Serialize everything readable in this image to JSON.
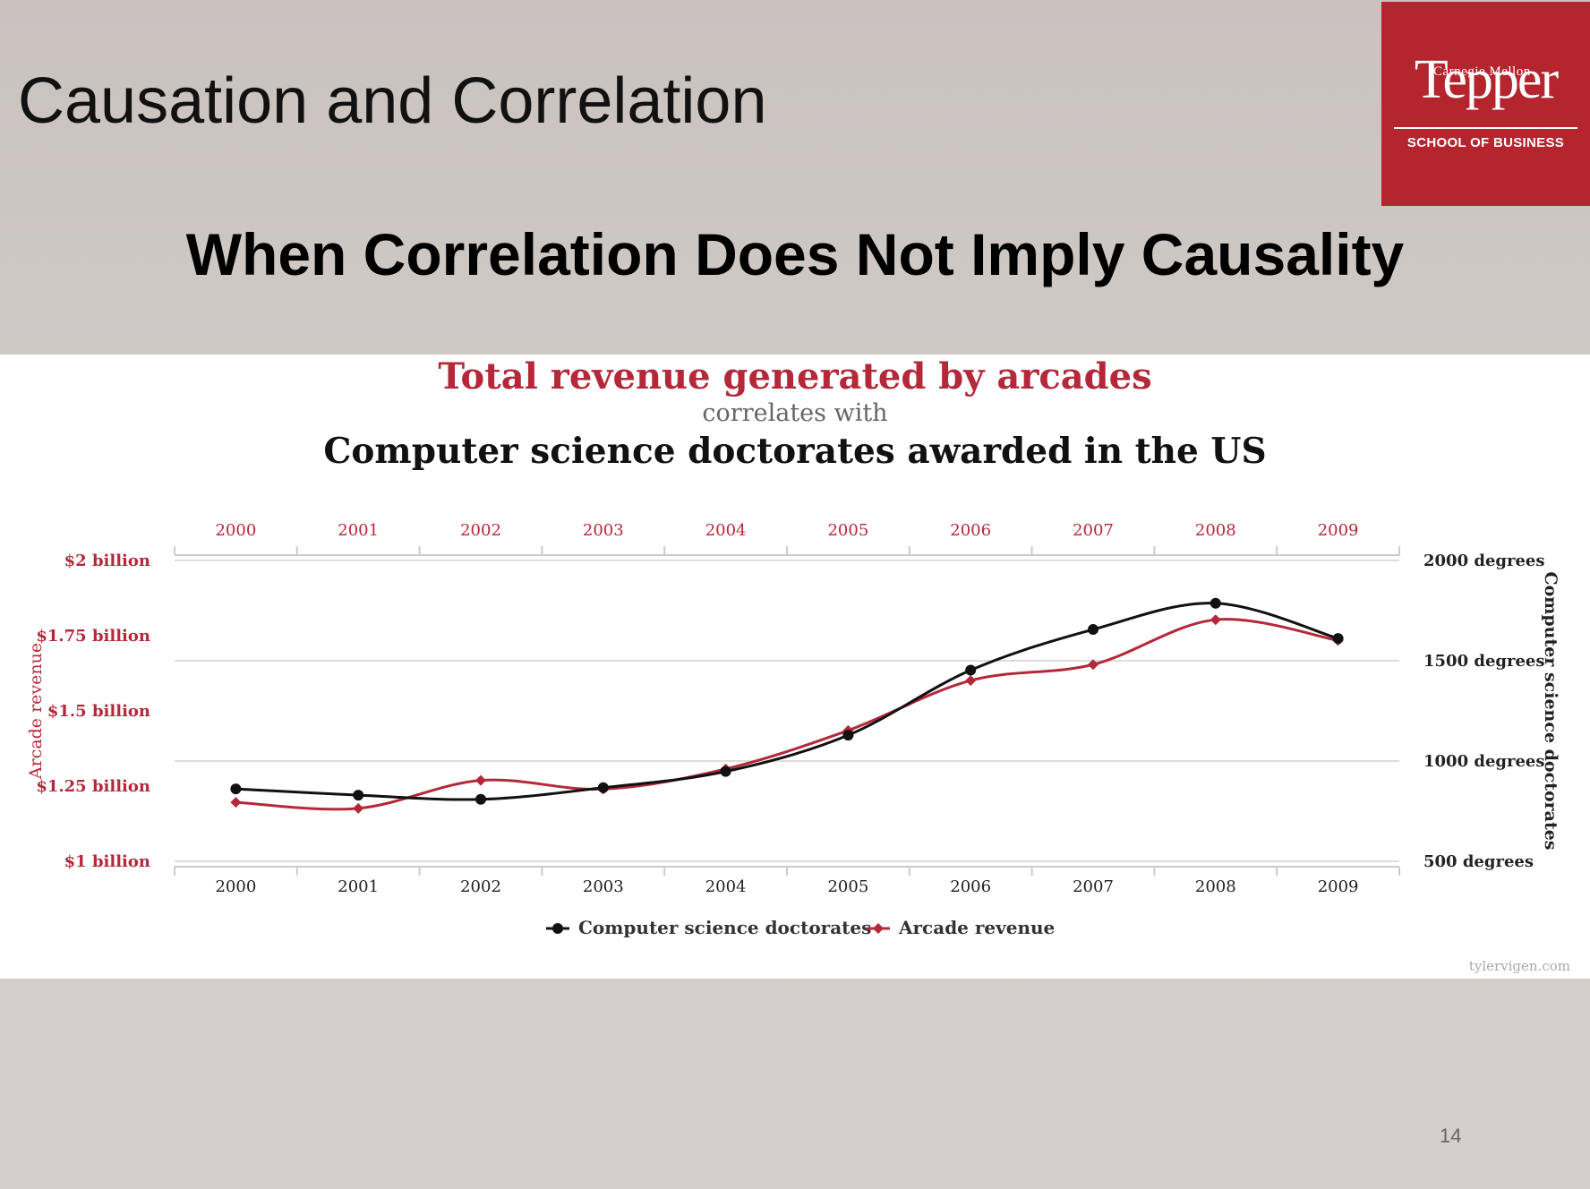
{
  "slide": {
    "title": "Causation and Correlation",
    "subtitle": "When Correlation Does Not Imply Causality",
    "page_number": "14",
    "logo": {
      "top": "Carnegie Mellon",
      "main": "Tepper",
      "bottom": "SCHOOL OF BUSINESS",
      "bg_color": "#b5252e"
    }
  },
  "chart_data": {
    "type": "line",
    "title_line1": "Total revenue generated by arcades",
    "title_line2": "correlates with",
    "title_line3": "Computer science doctorates awarded in the US",
    "watermark": "tylervigen.com",
    "x": [
      "2000",
      "2001",
      "2002",
      "2003",
      "2004",
      "2005",
      "2006",
      "2007",
      "2008",
      "2009"
    ],
    "y_left": {
      "label": "Arcade revenue",
      "ticks": [
        "$1 billion",
        "$1.25 billion",
        "$1.5 billion",
        "$1.75 billion",
        "$2 billion"
      ],
      "range": [
        1.0,
        2.0
      ]
    },
    "y_right": {
      "label": "Computer science doctorates",
      "ticks": [
        "500 degrees",
        "1000 degrees",
        "1500 degrees",
        "2000 degrees"
      ],
      "range": [
        500,
        2000
      ]
    },
    "grid": true,
    "legend_position": "bottom-center",
    "series": [
      {
        "name": "Computer science doctorates",
        "axis": "right",
        "color": "#111111",
        "values": [
          861,
          830,
          809,
          867,
          948,
          1129,
          1453,
          1656,
          1787,
          1611
        ]
      },
      {
        "name": "Arcade revenue",
        "axis": "left",
        "color": "#b5283a",
        "values": [
          1.196,
          1.176,
          1.269,
          1.24,
          1.307,
          1.435,
          1.601,
          1.654,
          1.803,
          1.734
        ]
      }
    ],
    "colors": {
      "left_axis": "#b5283a",
      "right_axis": "#222222",
      "grid": "#dddddd"
    }
  }
}
